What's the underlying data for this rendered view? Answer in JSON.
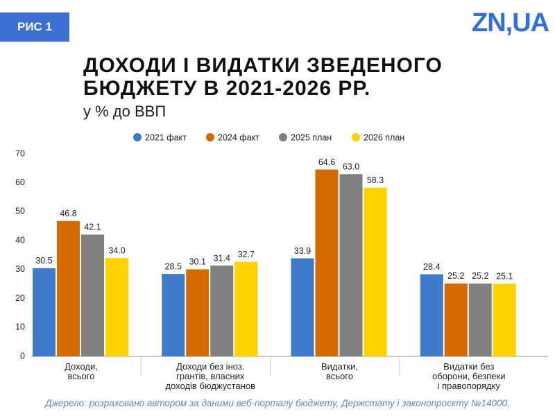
{
  "figure_label": "РИС 1",
  "logo": "ZN,UA",
  "chart_data": {
    "type": "bar",
    "title": "ДОХОДИ І ВИДАТКИ ЗВЕДЕНОГО\nБЮДЖЕТУ В 2021-2026 РР.",
    "subtitle": "у % до ВВП",
    "source": "Джерело: розраховано автором за даними веб-порталу бюджету, Держстату і законопроєкту №14000.",
    "categories": [
      "Доходи,\nвсього",
      "Доходи без іноз.\nгрантів, власних\nдоходів бюджустанов",
      "Видатки,\nвсього",
      "Видатки без\nоборони, безпеки\nі правопорядку"
    ],
    "series": [
      {
        "name": "2021 факт",
        "color": "#3f7acb",
        "values": [
          30.5,
          28.5,
          33.9,
          28.4
        ],
        "value_labels": [
          "30.5",
          "28.5",
          "33.9",
          "28.4"
        ]
      },
      {
        "name": "2024 факт",
        "color": "#d46a00",
        "values": [
          46.8,
          30.1,
          64.6,
          25.2
        ],
        "value_labels": [
          "46.8",
          "30.1",
          "64.6",
          "25.2"
        ]
      },
      {
        "name": "2025 план",
        "color": "#808080",
        "values": [
          42.1,
          31.4,
          63.0,
          25.2
        ],
        "value_labels": [
          "42.1",
          "31.4",
          "63.0",
          "25.2"
        ]
      },
      {
        "name": "2026 план",
        "color": "#ffd200",
        "values": [
          34.0,
          32.7,
          58.3,
          25.1
        ],
        "value_labels": [
          "34.0",
          "32.7",
          "58.3",
          "25.1"
        ]
      }
    ],
    "ylim": [
      0,
      70
    ],
    "yticks": [
      0,
      10,
      20,
      30,
      40,
      50,
      60,
      70
    ],
    "grid": false,
    "legend": "top"
  }
}
